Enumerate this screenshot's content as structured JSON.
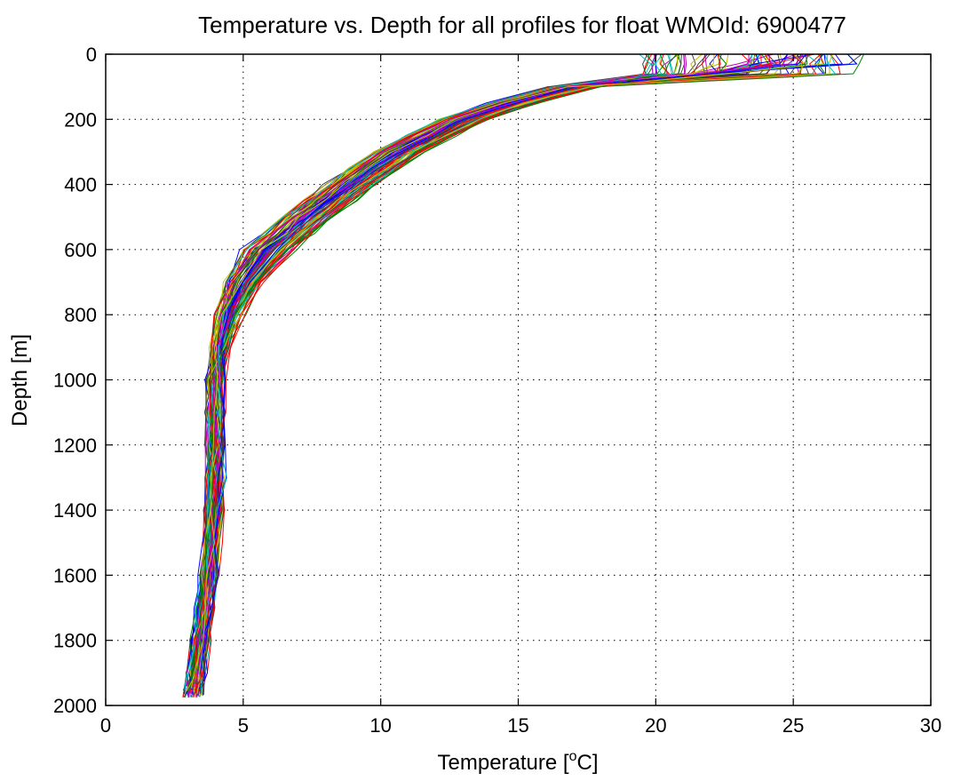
{
  "chart_data": {
    "type": "line",
    "title": "Temperature vs. Depth for all profiles for float WMOId: 6900477",
    "xlabel": {
      "pre": "Temperature [",
      "sup": "o",
      "post": "C]"
    },
    "ylabel": "Depth [m]",
    "xlim": [
      0,
      30
    ],
    "ylim": [
      0,
      2000
    ],
    "y_reversed": true,
    "grid": true,
    "grid_style": "dotted",
    "x_ticks": [
      0,
      5,
      10,
      15,
      20,
      25,
      30
    ],
    "y_ticks": [
      0,
      200,
      400,
      600,
      800,
      1000,
      1200,
      1400,
      1600,
      1800,
      2000
    ],
    "colors": [
      "#0000ff",
      "#008000",
      "#ff0000",
      "#00bfbf",
      "#bf00bf",
      "#bfbf00",
      "#404040"
    ],
    "profile_count": 90,
    "depth": [
      0,
      30,
      60,
      100,
      150,
      200,
      250,
      300,
      350,
      400,
      450,
      500,
      550,
      600,
      700,
      800,
      900,
      1000,
      1100,
      1200,
      1300,
      1400,
      1500,
      1600,
      1700,
      1800,
      1900,
      1975
    ],
    "reference_temperature": [
      23.5,
      23.5,
      22.0,
      17.0,
      14.8,
      13.0,
      11.8,
      10.6,
      9.7,
      8.9,
      8.1,
      7.3,
      6.6,
      5.9,
      5.0,
      4.5,
      4.2,
      4.0,
      4.0,
      4.0,
      4.0,
      3.95,
      3.85,
      3.75,
      3.6,
      3.45,
      3.3,
      3.2
    ]
  }
}
